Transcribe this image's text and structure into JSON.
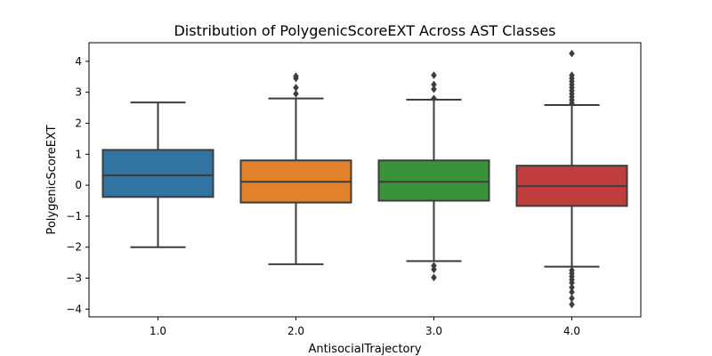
{
  "chart_data": {
    "type": "box",
    "title": "Distribution of PolygenicScoreEXT Across AST Classes",
    "xlabel": "AntisocialTrajectory",
    "ylabel": "PolygenicScoreEXT",
    "ylim": [
      -4.25,
      4.6
    ],
    "yticks": [
      -4,
      -3,
      -2,
      -1,
      0,
      1,
      2,
      3,
      4
    ],
    "ytick_labels": [
      "−4",
      "−3",
      "−2",
      "−1",
      "0",
      "1",
      "2",
      "3",
      "4"
    ],
    "categories": [
      "1.0",
      "2.0",
      "3.0",
      "4.0"
    ],
    "grid": false,
    "boxes": [
      {
        "category": "1.0",
        "color": "#3274a1",
        "whisker_low": -2.0,
        "q1": -0.38,
        "median": 0.32,
        "q3": 1.14,
        "whisker_high": 2.67,
        "outliers": []
      },
      {
        "category": "2.0",
        "color": "#e1812c",
        "whisker_low": -2.55,
        "q1": -0.56,
        "median": 0.11,
        "q3": 0.8,
        "whisker_high": 2.8,
        "outliers": [
          2.95,
          3.15,
          3.45,
          3.52
        ]
      },
      {
        "category": "3.0",
        "color": "#3a923a",
        "whisker_low": -2.45,
        "q1": -0.5,
        "median": 0.11,
        "q3": 0.8,
        "whisker_high": 2.76,
        "outliers": [
          -2.98,
          -2.72,
          -2.6,
          2.8,
          3.1,
          3.25,
          3.55
        ]
      },
      {
        "category": "4.0",
        "color": "#c03d3e",
        "whisker_low": -2.63,
        "q1": -0.67,
        "median": -0.03,
        "q3": 0.63,
        "whisker_high": 2.59,
        "outliers": [
          -3.85,
          -3.65,
          -3.45,
          -3.3,
          -3.15,
          -3.05,
          -2.95,
          -2.85,
          -2.75,
          2.65,
          2.75,
          2.85,
          2.95,
          3.05,
          3.15,
          3.25,
          3.35,
          3.45,
          3.55,
          4.25
        ]
      }
    ]
  }
}
